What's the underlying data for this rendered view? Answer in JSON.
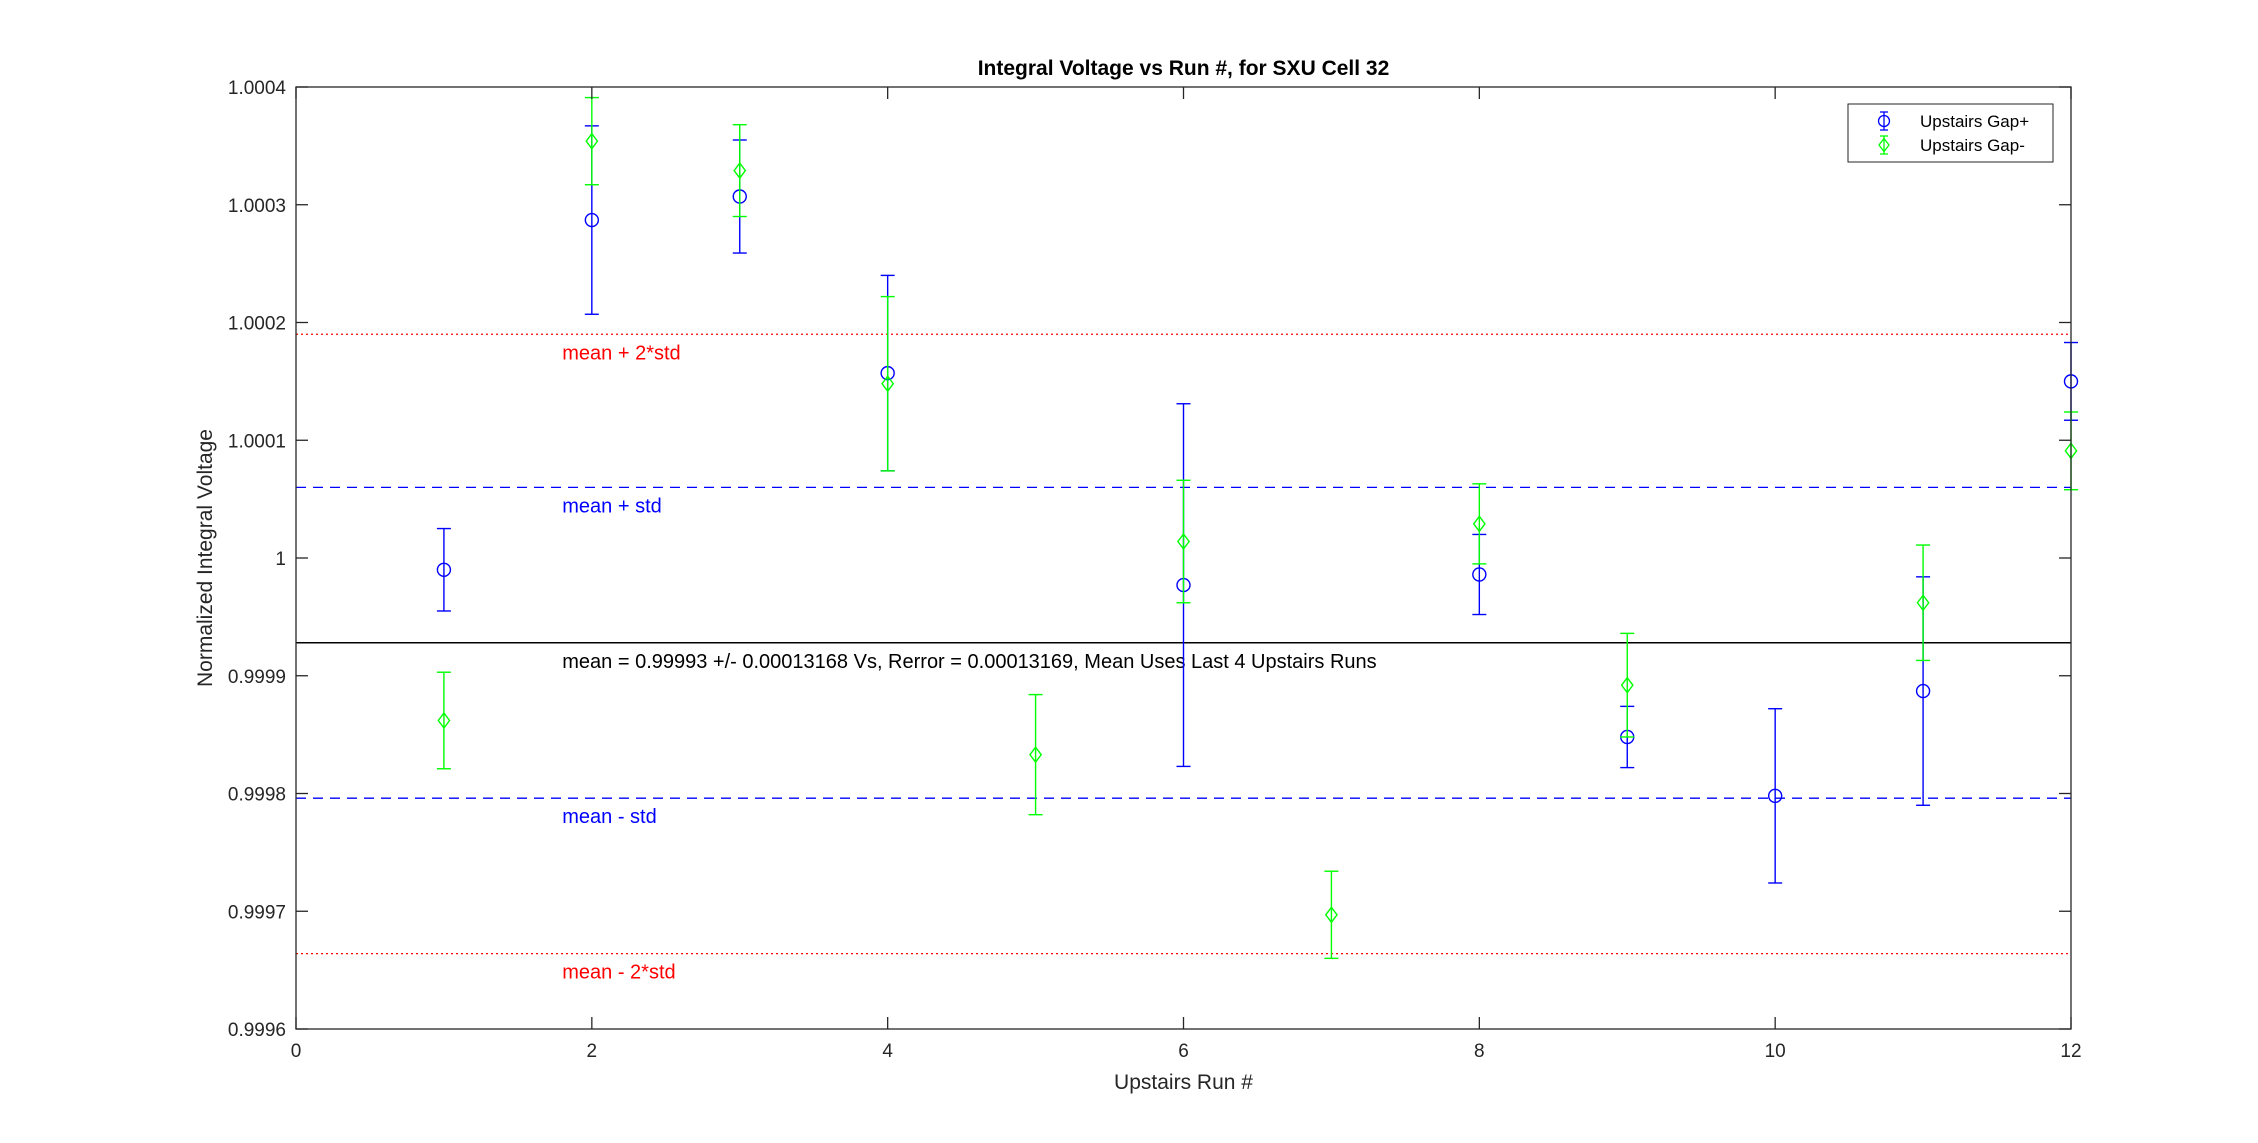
{
  "chart_data": {
    "type": "scatter",
    "title": "Integral Voltage vs Run #, for SXU Cell 32",
    "xlabel": "Upstairs Run #",
    "ylabel": "Normalized Integral Voltage",
    "xlim": [
      0,
      12
    ],
    "ylim": [
      0.9996,
      1.0004
    ],
    "xticks": [
      0,
      2,
      4,
      6,
      8,
      10,
      12
    ],
    "xtick_labels": [
      "0",
      "2",
      "4",
      "6",
      "8",
      "10",
      "12"
    ],
    "yticks": [
      0.9996,
      0.9997,
      0.9998,
      0.9999,
      1.0,
      1.0001,
      1.0002,
      1.0003,
      1.0004
    ],
    "ytick_labels": [
      "0.9996",
      "0.9997",
      "0.9998",
      "0.9999",
      "1",
      "1.0001",
      "1.0002",
      "1.0003",
      "1.0004"
    ],
    "grid": false,
    "legend_position": "top-right",
    "series": [
      {
        "name": "Upstairs Gap+",
        "color": "#0000ff",
        "marker": "circle",
        "x": [
          1,
          2,
          3,
          4,
          6,
          8,
          9,
          10,
          11,
          12
        ],
        "y": [
          0.99999,
          1.000287,
          1.000307,
          1.000157,
          0.999977,
          0.999986,
          0.999848,
          0.999798,
          0.999887,
          1.00015
        ],
        "err": [
          3.5e-05,
          8e-05,
          4.8e-05,
          8.3e-05,
          0.000154,
          3.4e-05,
          2.6e-05,
          7.4e-05,
          9.7e-05,
          3.3e-05
        ]
      },
      {
        "name": "Upstairs Gap-",
        "color": "#00ff00",
        "marker": "diamond",
        "x": [
          1,
          5,
          7,
          9,
          11,
          12
        ],
        "y": [
          0.999862,
          0.999833,
          0.999697,
          0.999892,
          0.999962,
          1.000091
        ],
        "err": [
          4.1e-05,
          5.1e-05,
          3.7e-05,
          4.4e-05,
          4.9e-05,
          3.3e-05
        ]
      },
      {
        "name": "Upstairs Gap-",
        "color": "#00ff00",
        "marker": "diamond",
        "x": [
          2,
          3,
          4,
          6,
          8
        ],
        "y": [
          1.000354,
          1.000329,
          1.000148,
          1.000014,
          1.000029
        ],
        "err": [
          3.7e-05,
          3.9e-05,
          7.4e-05,
          5.2e-05,
          3.4e-05
        ]
      }
    ],
    "reference_lines": [
      {
        "y": 1.00019,
        "label": "mean + 2*std",
        "color": "#ff0000",
        "style": "dotted"
      },
      {
        "y": 1.00006,
        "label": "mean + std",
        "color": "#0000ff",
        "style": "dashed"
      },
      {
        "y": 0.999928,
        "label": "mean = 0.99993 +/- 0.00013168 Vs, Rerror = 0.00013169, Mean Uses Last 4 Upstairs Runs",
        "color": "#000000",
        "style": "solid"
      },
      {
        "y": 0.999796,
        "label": "mean - std",
        "color": "#0000ff",
        "style": "dashed"
      },
      {
        "y": 0.999664,
        "label": "mean - 2*std",
        "color": "#ff0000",
        "style": "dotted"
      }
    ],
    "legend_entries": [
      "Upstairs Gap+",
      "Upstairs Gap-"
    ]
  }
}
